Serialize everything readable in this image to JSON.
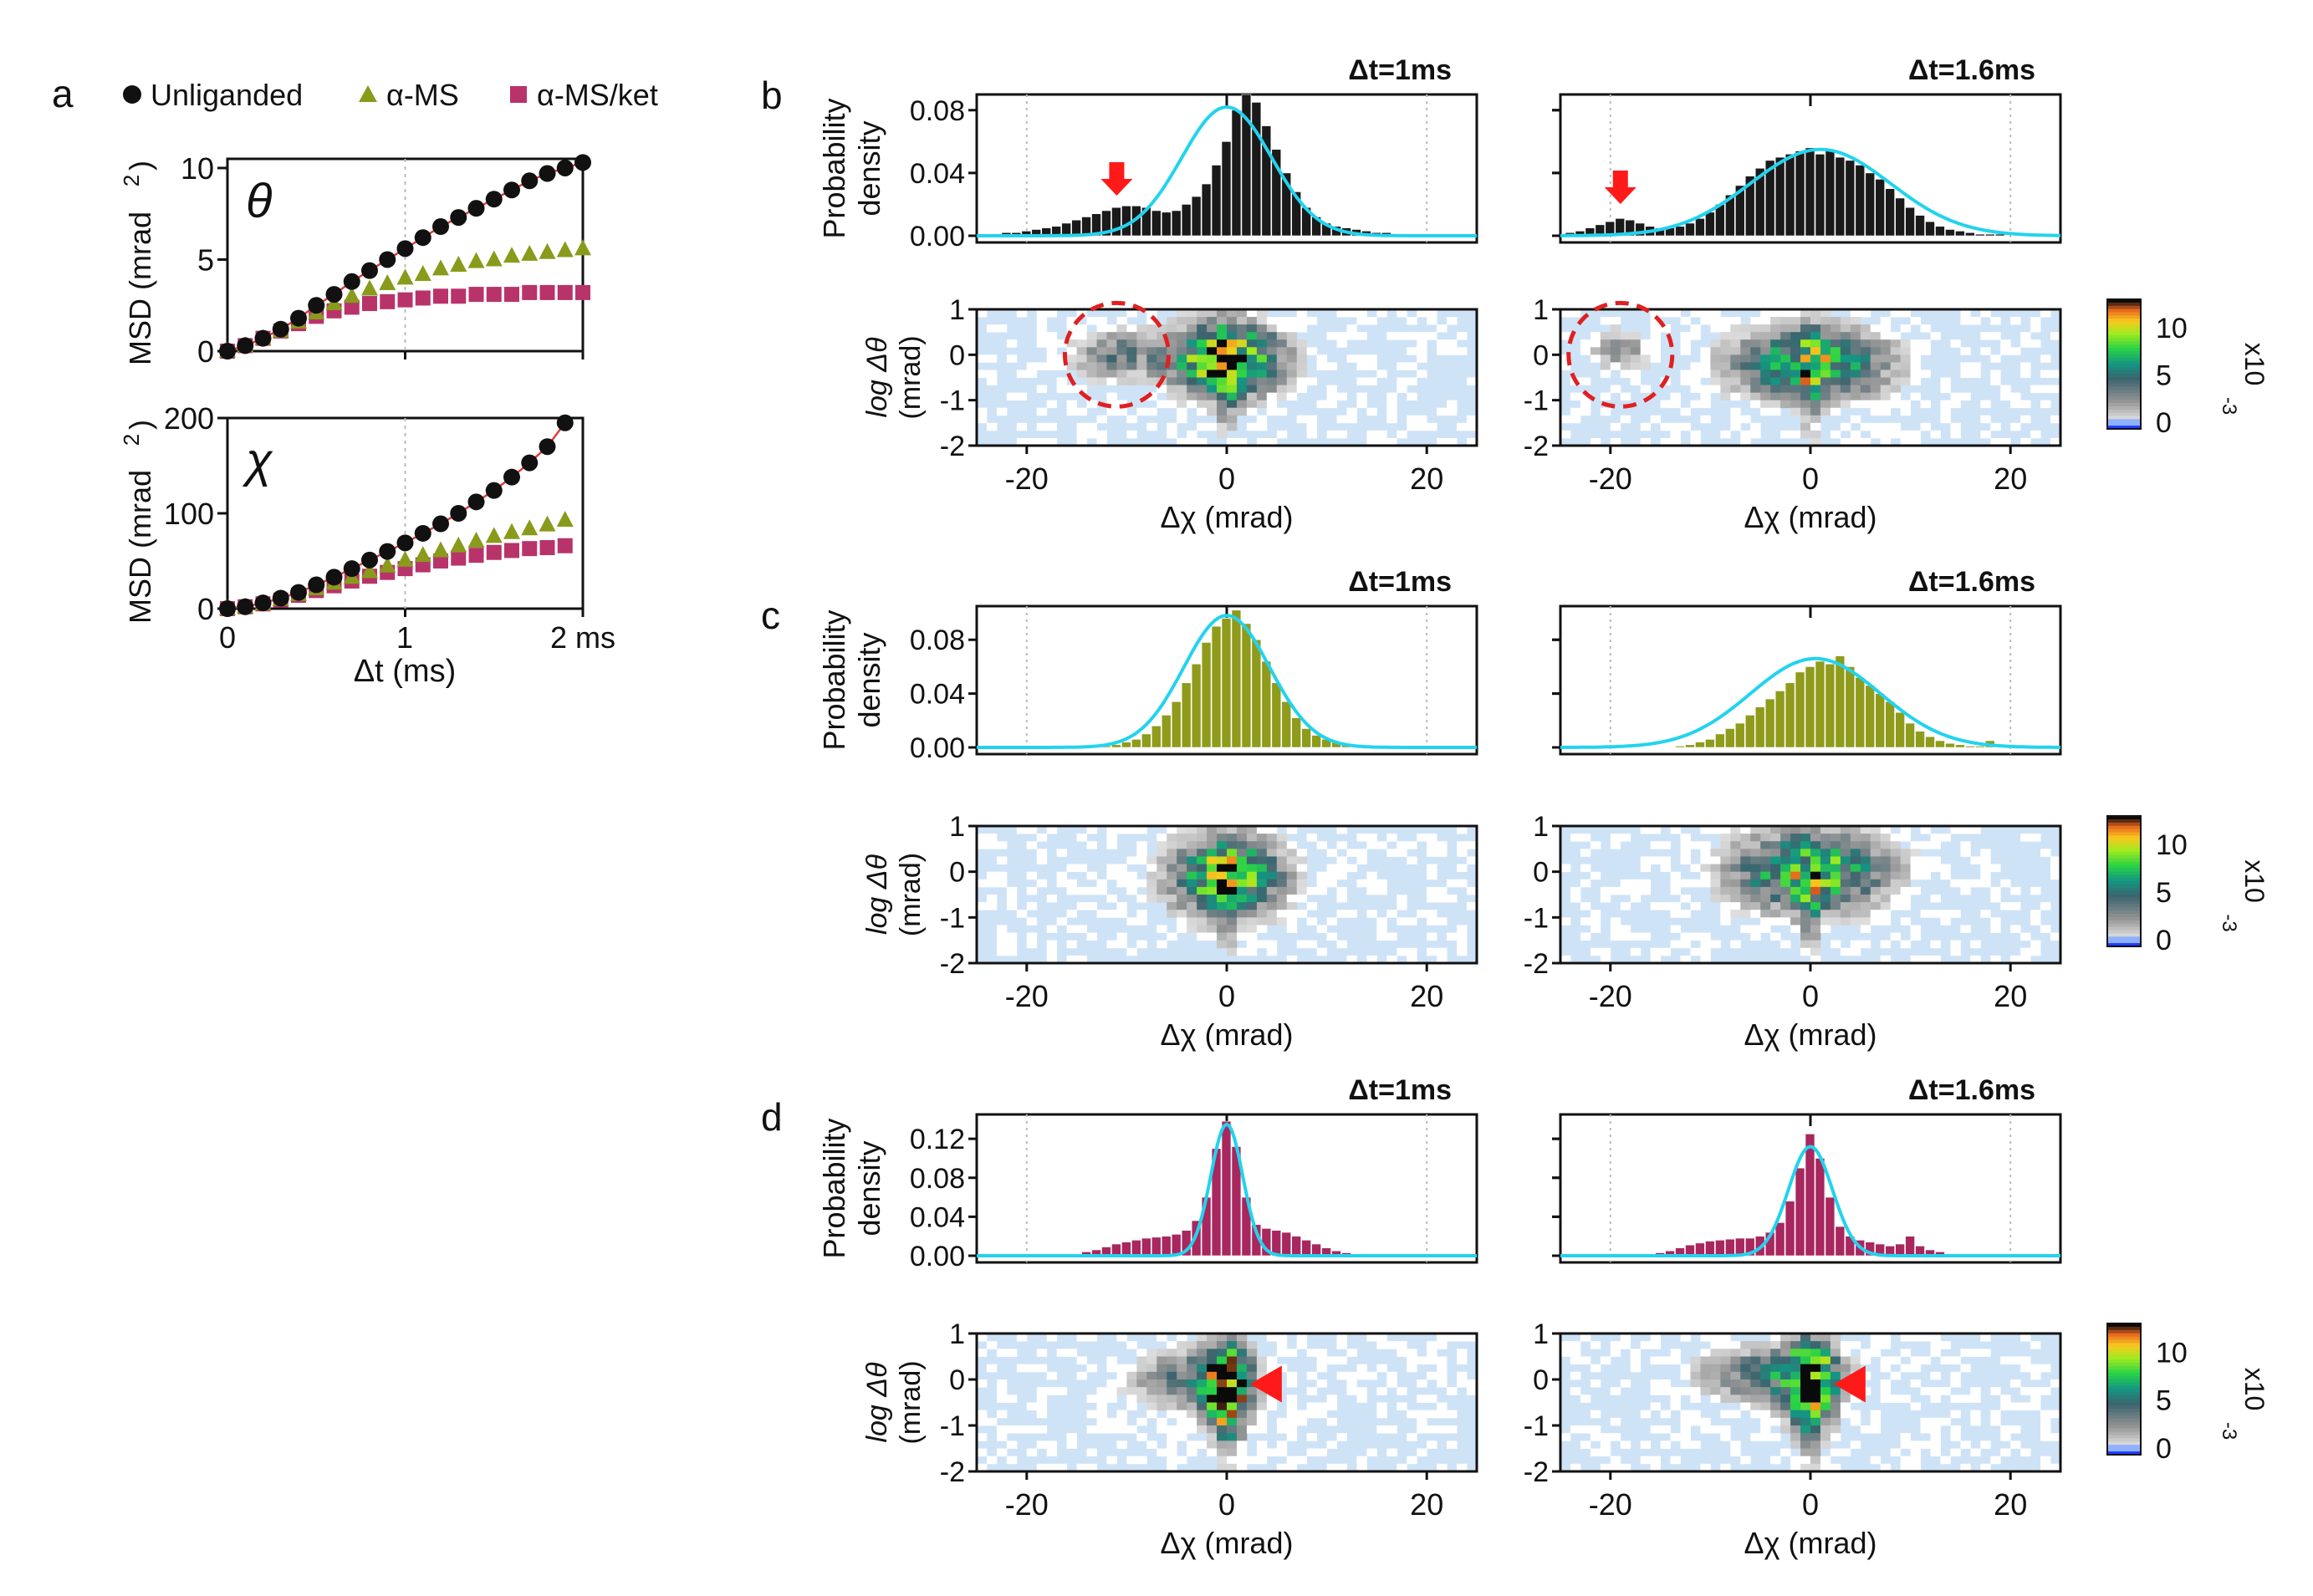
{
  "panel_labels": {
    "a": "a",
    "b": "b",
    "c": "c",
    "d": "d"
  },
  "legend": [
    {
      "label": "Unliganded",
      "color": "#111111",
      "marker": "circle"
    },
    {
      "label": "α-MS",
      "color": "#8a9a1b",
      "marker": "triangle"
    },
    {
      "label": "α-MS/ket",
      "color": "#b8336a",
      "marker": "square"
    }
  ],
  "colors": {
    "unliganded": "#111111",
    "ams": "#8a9a1b",
    "amsket": "#b8336a",
    "fit_line": "#22d3ee",
    "heat_bg": "#cfe3f7",
    "arrow": "#ff1a1a",
    "circle": "#e02020"
  },
  "texts": {
    "msd_ylabel": "MSD (mrad",
    "msd_sup": "2",
    "msd_close": ")",
    "theta": "θ",
    "chi": "χ",
    "dt_label": "Δt (ms)",
    "ms_suffix": "2 ms",
    "prob_line1": "Probability",
    "prob_line2": "density",
    "logdtheta": "log Δθ",
    "mrad": "(mrad)",
    "dchi_label": "Δχ  (mrad)",
    "dt1": "Δt=1ms",
    "dt16": "Δt=1.6ms",
    "cb_exp": "x10",
    "cb_sup": "-3",
    "cb_ticks": [
      "10",
      "5",
      "0"
    ]
  },
  "chart_data": [
    {
      "id": "a-theta",
      "type": "scatter",
      "title": "θ",
      "xlabel": "",
      "ylabel": "MSD (mrad^2)",
      "xlim": [
        0,
        2
      ],
      "ylim": [
        0,
        10.5
      ],
      "yticks": [
        0,
        5,
        10
      ],
      "xticks": [
        0,
        1,
        2
      ],
      "x": [
        0,
        0.1,
        0.2,
        0.3,
        0.4,
        0.5,
        0.6,
        0.7,
        0.8,
        0.9,
        1.0,
        1.1,
        1.2,
        1.3,
        1.4,
        1.5,
        1.6,
        1.7,
        1.8,
        1.9,
        2.0
      ],
      "series": [
        {
          "name": "Unliganded",
          "values": [
            0,
            0.3,
            0.7,
            1.2,
            1.8,
            2.5,
            3.1,
            3.8,
            4.4,
            5.0,
            5.6,
            6.2,
            6.8,
            7.3,
            7.8,
            8.3,
            8.8,
            9.3,
            9.7,
            10.0,
            10.3
          ]
        },
        {
          "name": "α-MS",
          "values": [
            0,
            0.3,
            0.7,
            1.1,
            1.6,
            2.1,
            2.6,
            3.0,
            3.4,
            3.7,
            4.0,
            4.2,
            4.5,
            4.7,
            4.9,
            5.0,
            5.2,
            5.3,
            5.4,
            5.5,
            5.6
          ]
        },
        {
          "name": "α-MS/ket",
          "values": [
            0,
            0.3,
            0.7,
            1.1,
            1.5,
            1.9,
            2.2,
            2.4,
            2.6,
            2.7,
            2.8,
            2.9,
            3.0,
            3.0,
            3.1,
            3.1,
            3.1,
            3.2,
            3.2,
            3.2,
            3.2
          ]
        }
      ]
    },
    {
      "id": "a-chi",
      "type": "scatter",
      "title": "χ",
      "xlabel": "Δt (ms)",
      "ylabel": "MSD (mrad^2)",
      "xlim": [
        0,
        2
      ],
      "ylim": [
        0,
        200
      ],
      "yticks": [
        0,
        100,
        200
      ],
      "xticks": [
        0,
        1,
        2
      ],
      "x": [
        0,
        0.1,
        0.2,
        0.3,
        0.4,
        0.5,
        0.6,
        0.7,
        0.8,
        0.9,
        1.0,
        1.1,
        1.2,
        1.3,
        1.4,
        1.5,
        1.6,
        1.7,
        1.8,
        1.9
      ],
      "series": [
        {
          "name": "Unliganded",
          "values": [
            0,
            2,
            6,
            11,
            17,
            25,
            33,
            42,
            51,
            60,
            69,
            79,
            89,
            100,
            112,
            124,
            138,
            153,
            170,
            195
          ]
        },
        {
          "name": "α-MS",
          "values": [
            0,
            2,
            5,
            10,
            15,
            21,
            27,
            33,
            39,
            45,
            51,
            56,
            61,
            66,
            71,
            76,
            80,
            84,
            88,
            93
          ]
        },
        {
          "name": "α-MS/ket",
          "values": [
            0,
            2,
            5,
            9,
            14,
            19,
            24,
            29,
            34,
            38,
            42,
            46,
            50,
            53,
            56,
            59,
            61,
            63,
            64,
            66
          ]
        }
      ]
    },
    {
      "id": "b-hist-1",
      "panel": "b",
      "type": "bar",
      "title": "Δt=1ms",
      "xlim": [
        -25,
        25
      ],
      "ylim": [
        0,
        0.09
      ],
      "yticks": [
        "0.00",
        "0.04",
        "0.08"
      ],
      "bin_start": -24,
      "bin_width": 1,
      "values": [
        0.001,
        0.001,
        0.002,
        0.002,
        0.003,
        0.004,
        0.005,
        0.006,
        0.008,
        0.01,
        0.012,
        0.014,
        0.016,
        0.018,
        0.019,
        0.019,
        0.018,
        0.016,
        0.015,
        0.016,
        0.02,
        0.025,
        0.033,
        0.045,
        0.06,
        0.08,
        0.09,
        0.085,
        0.07,
        0.055,
        0.04,
        0.028,
        0.018,
        0.012,
        0.008,
        0.006,
        0.005,
        0.004,
        0.003,
        0.002,
        0.002,
        0.001,
        0.001,
        0,
        0,
        0,
        0,
        0
      ],
      "fit": {
        "mu": 0,
        "sigma": 4.5,
        "amp": 0.082
      },
      "annotation": "arrow at -11"
    },
    {
      "id": "b-hist-16",
      "panel": "b",
      "type": "bar",
      "title": "Δt=1.6ms",
      "xlim": [
        -25,
        25
      ],
      "ylim": [
        0,
        0.09
      ],
      "yticks": [
        "0.00",
        "0.04",
        "0.08"
      ],
      "bin_start": -24,
      "bin_width": 1,
      "values": [
        0.002,
        0.003,
        0.005,
        0.007,
        0.009,
        0.011,
        0.01,
        0.008,
        0.006,
        0.005,
        0.005,
        0.006,
        0.008,
        0.011,
        0.015,
        0.02,
        0.026,
        0.032,
        0.038,
        0.043,
        0.048,
        0.05,
        0.052,
        0.054,
        0.056,
        0.052,
        0.055,
        0.05,
        0.048,
        0.045,
        0.04,
        0.036,
        0.03,
        0.024,
        0.018,
        0.013,
        0.009,
        0.006,
        0.004,
        0.003,
        0.002,
        0.001,
        0.001,
        0.001,
        0,
        0,
        0,
        0
      ],
      "fit": {
        "mu": 1,
        "sigma": 7,
        "amp": 0.055
      },
      "annotation": "arrow at -19"
    },
    {
      "id": "c-hist-1",
      "panel": "c",
      "type": "bar",
      "title": "Δt=1ms",
      "xlim": [
        -25,
        25
      ],
      "ylim": [
        0,
        0.105
      ],
      "yticks": [
        "0.00",
        "0.04",
        "0.08"
      ],
      "bin_start": -24,
      "bin_width": 1,
      "values": [
        0,
        0,
        0,
        0,
        0,
        0,
        0,
        0,
        0,
        0,
        0,
        0,
        0.001,
        0.002,
        0.004,
        0.006,
        0.01,
        0.016,
        0.024,
        0.034,
        0.048,
        0.062,
        0.078,
        0.09,
        0.096,
        0.102,
        0.092,
        0.08,
        0.064,
        0.048,
        0.034,
        0.022,
        0.014,
        0.009,
        0.006,
        0.004,
        0.003,
        0.002,
        0.001,
        0,
        0,
        0,
        0,
        0,
        0,
        0,
        0,
        0
      ],
      "fit": {
        "mu": 0,
        "sigma": 4.3,
        "amp": 0.098
      }
    },
    {
      "id": "c-hist-16",
      "panel": "c",
      "type": "bar",
      "title": "Δt=1.6ms",
      "xlim": [
        -25,
        25
      ],
      "ylim": [
        0,
        0.105
      ],
      "yticks": [
        "0.00",
        "0.04",
        "0.08"
      ],
      "bin_start": -24,
      "bin_width": 1,
      "values": [
        0,
        0,
        0,
        0,
        0,
        0,
        0,
        0,
        0,
        0,
        0,
        0.001,
        0.002,
        0.004,
        0.006,
        0.01,
        0.014,
        0.018,
        0.024,
        0.03,
        0.036,
        0.042,
        0.048,
        0.056,
        0.06,
        0.064,
        0.062,
        0.068,
        0.06,
        0.052,
        0.046,
        0.04,
        0.034,
        0.026,
        0.018,
        0.012,
        0.008,
        0.005,
        0.003,
        0.002,
        0.001,
        0.001,
        0.005,
        0,
        0,
        0,
        0,
        0
      ],
      "fit": {
        "mu": 0.5,
        "sigma": 6.5,
        "amp": 0.066
      }
    },
    {
      "id": "d-hist-1",
      "panel": "d",
      "type": "bar",
      "title": "Δt=1ms",
      "xlim": [
        -25,
        25
      ],
      "ylim": [
        0,
        0.145
      ],
      "yticks": [
        "0.00",
        "0.04",
        "0.08",
        "0.12"
      ],
      "bin_start": -24,
      "bin_width": 1,
      "values": [
        0,
        0,
        0,
        0,
        0,
        0,
        0,
        0,
        0.001,
        0.002,
        0.004,
        0.006,
        0.009,
        0.012,
        0.014,
        0.016,
        0.018,
        0.019,
        0.02,
        0.022,
        0.026,
        0.036,
        0.06,
        0.11,
        0.138,
        0.112,
        0.06,
        0.032,
        0.028,
        0.026,
        0.024,
        0.02,
        0.016,
        0.012,
        0.008,
        0.005,
        0.003,
        0.002,
        0.001,
        0,
        0,
        0,
        0,
        0,
        0,
        0,
        0,
        0
      ],
      "fit": {
        "mu": 0,
        "sigma": 1.6,
        "amp": 0.135
      },
      "annotation": "arrowhead at 4"
    },
    {
      "id": "d-hist-16",
      "panel": "d",
      "type": "bar",
      "title": "Δt=1.6ms",
      "xlim": [
        -25,
        25
      ],
      "ylim": [
        0,
        0.145
      ],
      "yticks": [
        "0.00",
        "0.04",
        "0.08",
        "0.12"
      ],
      "bin_start": -24,
      "bin_width": 1,
      "values": [
        0,
        0,
        0,
        0,
        0,
        0,
        0,
        0,
        0.001,
        0.003,
        0.005,
        0.008,
        0.011,
        0.013,
        0.015,
        0.016,
        0.017,
        0.018,
        0.018,
        0.02,
        0.024,
        0.034,
        0.056,
        0.09,
        0.125,
        0.1,
        0.06,
        0.03,
        0.02,
        0.016,
        0.014,
        0.012,
        0.01,
        0.012,
        0.02,
        0.01,
        0.006,
        0.004,
        0.002,
        0.001,
        0,
        0,
        0,
        0,
        0,
        0,
        0,
        0
      ],
      "fit": {
        "mu": 0,
        "sigma": 2.2,
        "amp": 0.112
      },
      "annotation": "arrowhead at 4"
    },
    {
      "id": "heatmaps",
      "type": "heatmap",
      "xlabel": "Δχ  (mrad)",
      "ylabel": "log Δθ (mrad)",
      "xlim": [
        -25,
        25
      ],
      "ylim": [
        -2,
        1
      ],
      "xticks": [
        -20,
        0,
        20
      ],
      "yticks": [
        1,
        0,
        -1,
        -2
      ],
      "colorbar": {
        "range": [
          0,
          13
        ],
        "ticks": [
          0,
          5,
          10
        ],
        "exponent": "x10^-3"
      },
      "panels": [
        {
          "panel": "b",
          "dt": "1ms",
          "components": [
            {
              "x": 0,
              "y": -0.1,
              "sx": 3.5,
              "sy": 0.5,
              "amp": 13
            },
            {
              "x": -11,
              "y": 0,
              "sx": 3,
              "sy": 0.35,
              "amp": 4
            }
          ],
          "circle": {
            "x": -11,
            "y": 0
          }
        },
        {
          "panel": "b",
          "dt": "1.6ms",
          "components": [
            {
              "x": 0,
              "y": -0.2,
              "sx": 5,
              "sy": 0.5,
              "amp": 9
            },
            {
              "x": -19,
              "y": 0.1,
              "sx": 2,
              "sy": 0.3,
              "amp": 3
            }
          ],
          "circle": {
            "x": -19,
            "y": 0
          }
        },
        {
          "panel": "c",
          "dt": "1ms",
          "components": [
            {
              "x": 0,
              "y": -0.1,
              "sx": 3.5,
              "sy": 0.55,
              "amp": 11
            }
          ]
        },
        {
          "panel": "c",
          "dt": "1.6ms",
          "components": [
            {
              "x": 0,
              "y": 0,
              "sx": 5,
              "sy": 0.55,
              "amp": 9
            }
          ]
        },
        {
          "panel": "d",
          "dt": "1ms",
          "components": [
            {
              "x": 0,
              "y": -0.2,
              "sx": 1.4,
              "sy": 0.6,
              "amp": 14
            },
            {
              "x": -3,
              "y": 0,
              "sx": 4,
              "sy": 0.4,
              "amp": 5
            }
          ],
          "arrowhead": {
            "x": 4,
            "y": -0.1
          }
        },
        {
          "panel": "d",
          "dt": "1.6ms",
          "components": [
            {
              "x": 0,
              "y": -0.1,
              "sx": 1.6,
              "sy": 0.6,
              "amp": 13
            },
            {
              "x": -4,
              "y": 0.1,
              "sx": 4.5,
              "sy": 0.4,
              "amp": 5
            }
          ],
          "arrowhead": {
            "x": 4,
            "y": -0.1
          }
        }
      ]
    }
  ]
}
